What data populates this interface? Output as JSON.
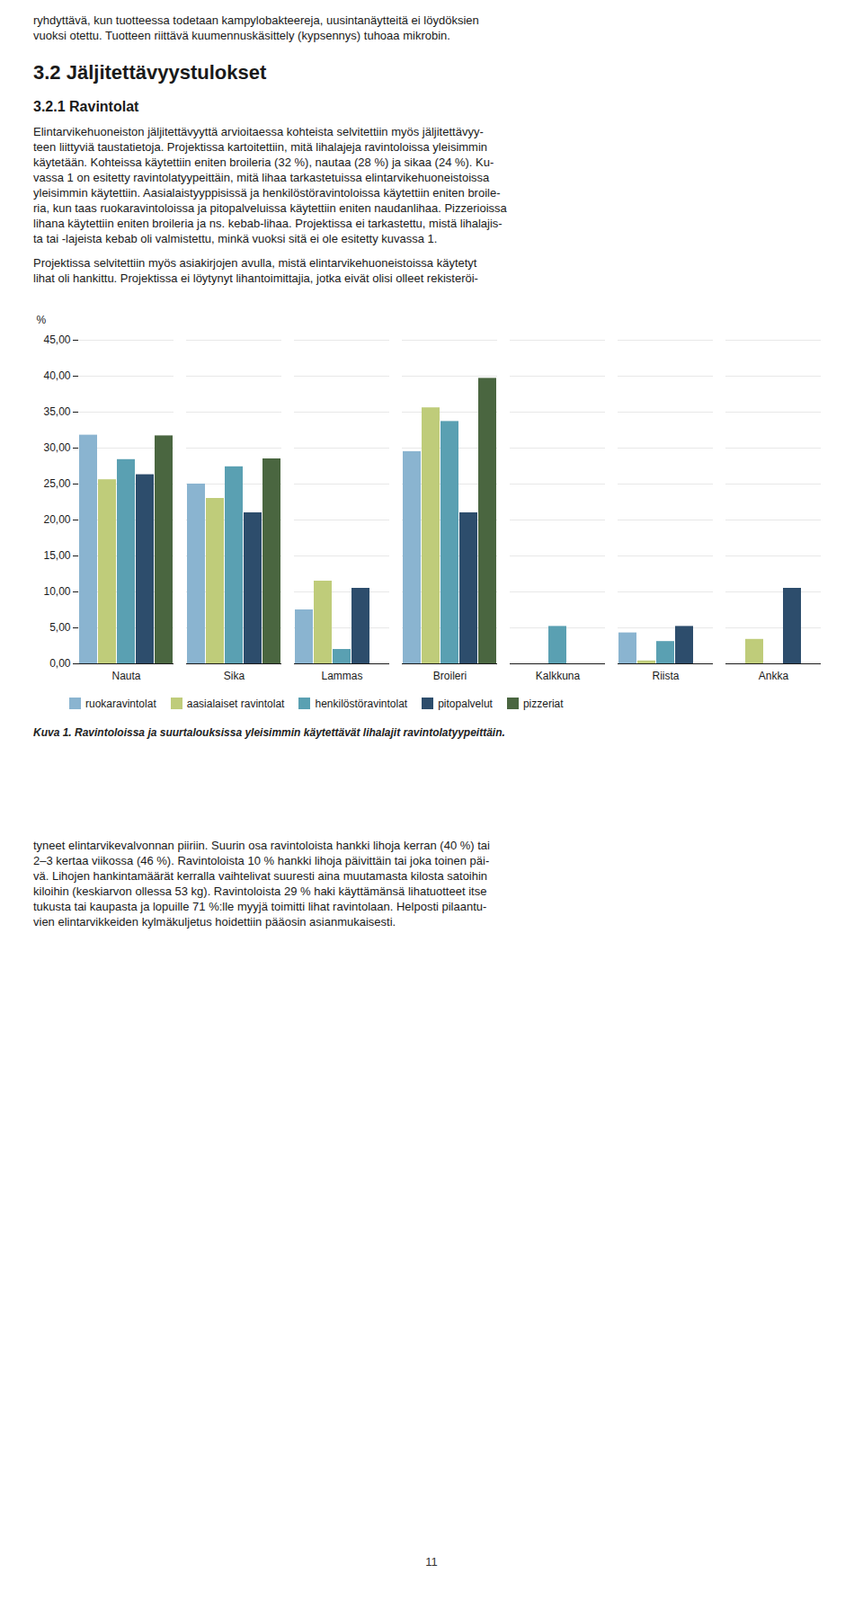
{
  "page": {
    "above": [
      "ryhdyttävä, kun tuotteessa todetaan kampylobakteereja, uusintanäytteitä ei löydöksien",
      "vuoksi otettu. Tuotteen riittävä kuumennuskäsittely (kypsennys) tuhoaa mikrobin.",
      "3.2 Jäljitettävyystulokset",
      "3.2.1 Ravintolat",
      "Elintarvikehuoneiston jäljitettävyyttä arvioitaessa kohteista selvitettiin myös jäljitettävyy-",
      "teen liittyviä taustatietoja. Projektissa kartoitettiin, mitä lihalajeja ravintoloissa yleisimmin",
      "käytetään. Kohteissa käytettiin eniten broileria (32 %), nautaa (28 %) ja sikaa (24 %). Ku-",
      "vassa 1 on esitetty ravintolatyypeittäin, mitä lihaa tarkastetuissa elintarvikehuoneistoissa",
      "yleisimmin käytettiin. Aasialaistyyppisissä ja henkilöstöravintoloissa käytettiin eniten broile-",
      "ria, kun taas ruokaravintoloissa ja pitopalveluissa käytettiin eniten naudanlihaa. Pizzerioissa",
      "lihana käytettiin eniten broileria ja ns. kebab-lihaa. Projektissa ei tarkastettu, mistä lihalajis-",
      "ta tai -lajeista kebab oli valmistettu, minkä vuoksi sitä ei ole esitetty kuvassa 1.",
      "Projektissa selvitettiin myös asiakirjojen avulla, mistä elintarvikehuoneistoissa käytetyt",
      "lihat oli hankittu. Projektissa ei löytynyt lihantoimittajia, jotka eivät olisi olleet rekisteröi-"
    ],
    "below": [
      "tyneet elintarvikevalvonnan piiriin. Suurin osa ravintoloista hankki lihoja kerran (40 %) tai",
      "2–3 kertaa viikossa (46 %). Ravintoloista 10 % hankki lihoja päivittäin tai joka toinen päi-",
      "vä. Lihojen hankintamäärät kerralla vaihtelivat suuresti aina muutamasta kilosta satoihin",
      "kiloihin (keskiarvon ollessa 53 kg). Ravintoloista 29 % haki käyttämänsä lihatuotteet itse",
      "tukusta tai kaupasta ja lopuille 71 %:lle myyjä toimitti lihat ravintolaan. Helposti pilaantu-",
      "vien elintarvikkeiden kylmäkuljetus hoidettiin pääosin asianmukaisesti."
    ],
    "page_number": "11"
  },
  "chart_data": {
    "type": "bar",
    "caption": "Kuva 1. Ravintoloissa ja suurtalouksissa yleisimmin käytettävät lihalajit ravintolatyypeittäin.",
    "ylabel": "%",
    "categories": [
      "Nauta",
      "Sika",
      "Lammas",
      "Broileri",
      "Kalkkuna",
      "Riista",
      "Ankka"
    ],
    "series": [
      {
        "name": "ruokaravintolat",
        "color": "#8ab4d0",
        "values": [
          31.8,
          25.0,
          7.5,
          29.5,
          0.0,
          4.3,
          0.0
        ]
      },
      {
        "name": "aasialaiset ravintolat",
        "color": "#bfcc7a",
        "values": [
          25.6,
          23.0,
          11.5,
          35.6,
          0.0,
          0.4,
          3.4
        ]
      },
      {
        "name": "henkilöstöravintolat",
        "color": "#5aa0b2",
        "values": [
          28.4,
          27.4,
          2.0,
          33.7,
          5.2,
          3.1,
          0.0
        ]
      },
      {
        "name": "pitopalvelut",
        "color": "#2d4d6c",
        "values": [
          26.3,
          21.0,
          10.5,
          21.0,
          0.0,
          5.2,
          10.5
        ]
      },
      {
        "name": "pizzeriat",
        "color": "#4a6640",
        "values": [
          31.7,
          28.5,
          0.0,
          39.7,
          0.0,
          0.0,
          0.0
        ]
      }
    ],
    "ylim": [
      0,
      45
    ],
    "yticks": [
      {
        "value": 0,
        "label": "0,00"
      },
      {
        "value": 5,
        "label": "5,00"
      },
      {
        "value": 10,
        "label": "10,00"
      },
      {
        "value": 15,
        "label": "15,00"
      },
      {
        "value": 20,
        "label": "20,00"
      },
      {
        "value": 25,
        "label": "25,00"
      },
      {
        "value": 30,
        "label": "30,00"
      },
      {
        "value": 35,
        "label": "35,00"
      },
      {
        "value": 40,
        "label": "40,00"
      },
      {
        "value": 45,
        "label": "45,00"
      }
    ],
    "grid": true,
    "legend": "bottom"
  }
}
